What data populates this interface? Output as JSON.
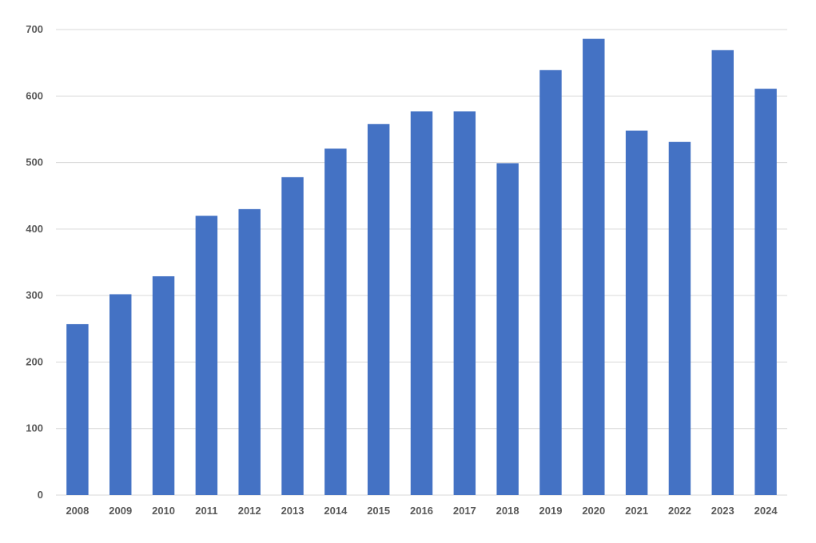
{
  "chart_data": {
    "type": "bar",
    "categories": [
      "2008",
      "2009",
      "2010",
      "2011",
      "2012",
      "2013",
      "2014",
      "2015",
      "2016",
      "2017",
      "2018",
      "2019",
      "2020",
      "2021",
      "2022",
      "2023",
      "2024"
    ],
    "values": [
      257,
      302,
      329,
      420,
      430,
      478,
      521,
      558,
      577,
      577,
      499,
      639,
      686,
      548,
      531,
      669,
      611
    ],
    "title": "",
    "xlabel": "",
    "ylabel": "",
    "ylim": [
      0,
      700
    ],
    "yticks": [
      0,
      100,
      200,
      300,
      400,
      500,
      600,
      700
    ],
    "grid": true,
    "legend": "none",
    "colors": {
      "bar": "#4472c4",
      "grid": "#d9d9d9",
      "tick_text": "#595959"
    }
  }
}
